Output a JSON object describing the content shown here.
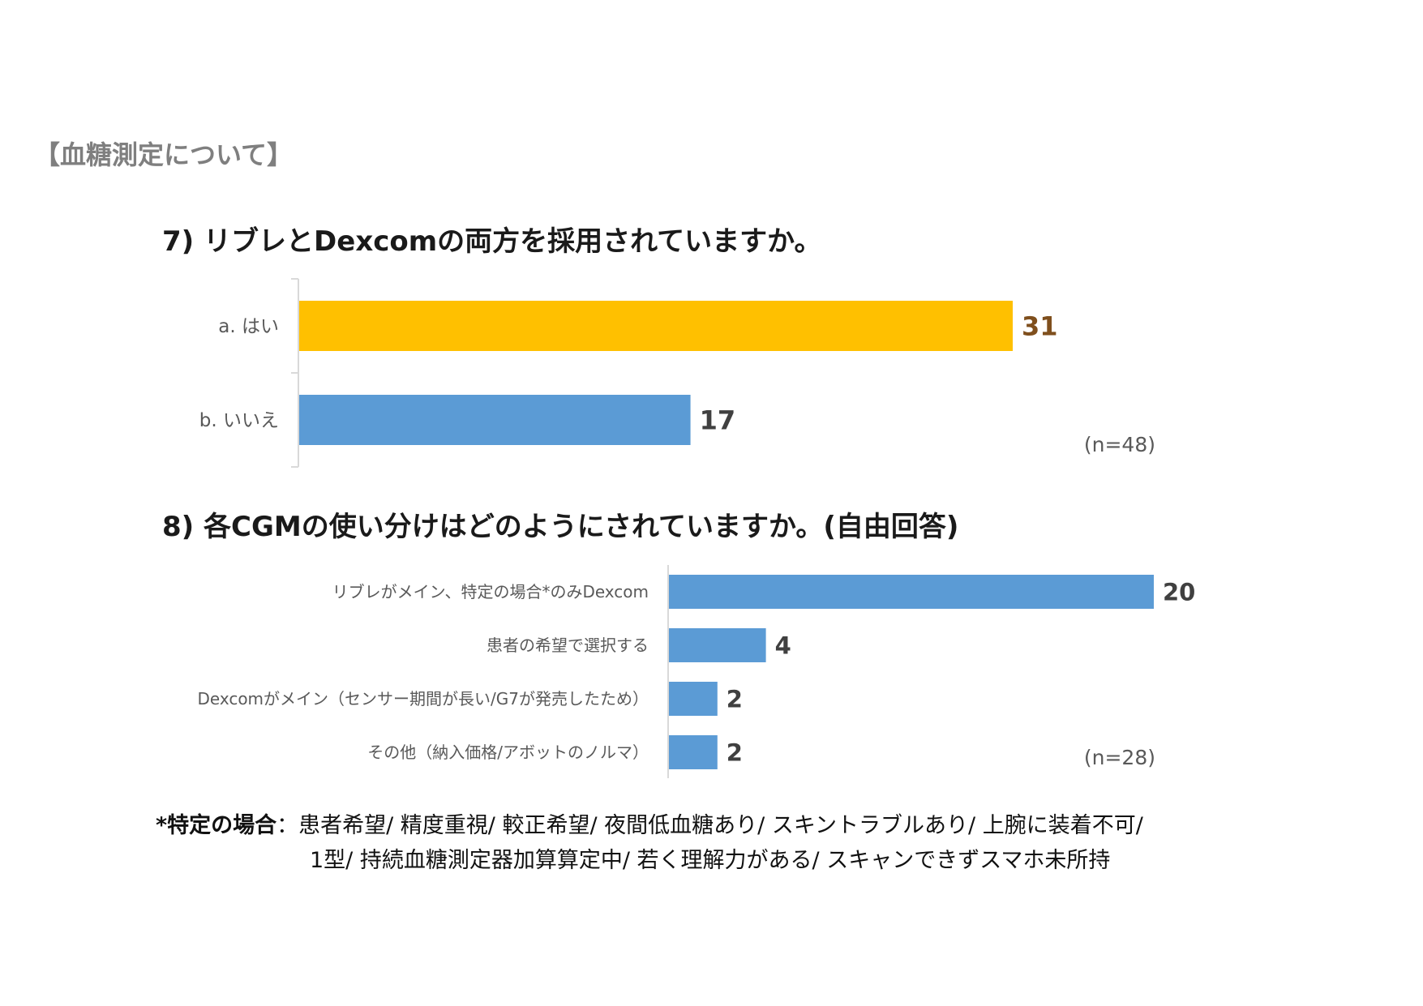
{
  "section_title": "【血糖測定について】",
  "chart_data": [
    {
      "type": "bar",
      "orientation": "horizontal",
      "title": "7) リブレとDexcomの両方を採用されていますか。",
      "categories": [
        "a. はい",
        "b. いいえ"
      ],
      "values": [
        31,
        17
      ],
      "colors": [
        "#ffc000",
        "#5b9bd5"
      ],
      "value_label_colors": [
        "#7f4f1d",
        "#404040"
      ],
      "note": "(n=48)",
      "xlim": [
        0,
        31
      ],
      "grid": false
    },
    {
      "type": "bar",
      "orientation": "horizontal",
      "title": "8) 各CGMの使い分けはどのようにされていますか。(自由回答)",
      "categories": [
        "リブレがメイン、特定の場合*のみDexcom",
        "患者の希望で選択する",
        "Dexcomがメイン（センサー期間が長い/G7が発売したため）",
        "その他（納入価格/アボットのノルマ）"
      ],
      "values": [
        20,
        4,
        2,
        2
      ],
      "colors": [
        "#5b9bd5",
        "#5b9bd5",
        "#5b9bd5",
        "#5b9bd5"
      ],
      "value_label_colors": [
        "#404040",
        "#404040",
        "#404040",
        "#404040"
      ],
      "note": "(n=28)",
      "xlim": [
        0,
        20
      ],
      "grid": false
    }
  ],
  "footnote": {
    "head": "*特定の場合",
    "sep": "：",
    "line1": "患者希望/ 精度重視/ 較正希望/ 夜間低血糖あり/ スキントラブルあり/ 上腕に装着不可/",
    "line2": "1型/ 持続血糖測定器加算算定中/ 若く理解力がある/ スキャンできずスマホ未所持"
  }
}
